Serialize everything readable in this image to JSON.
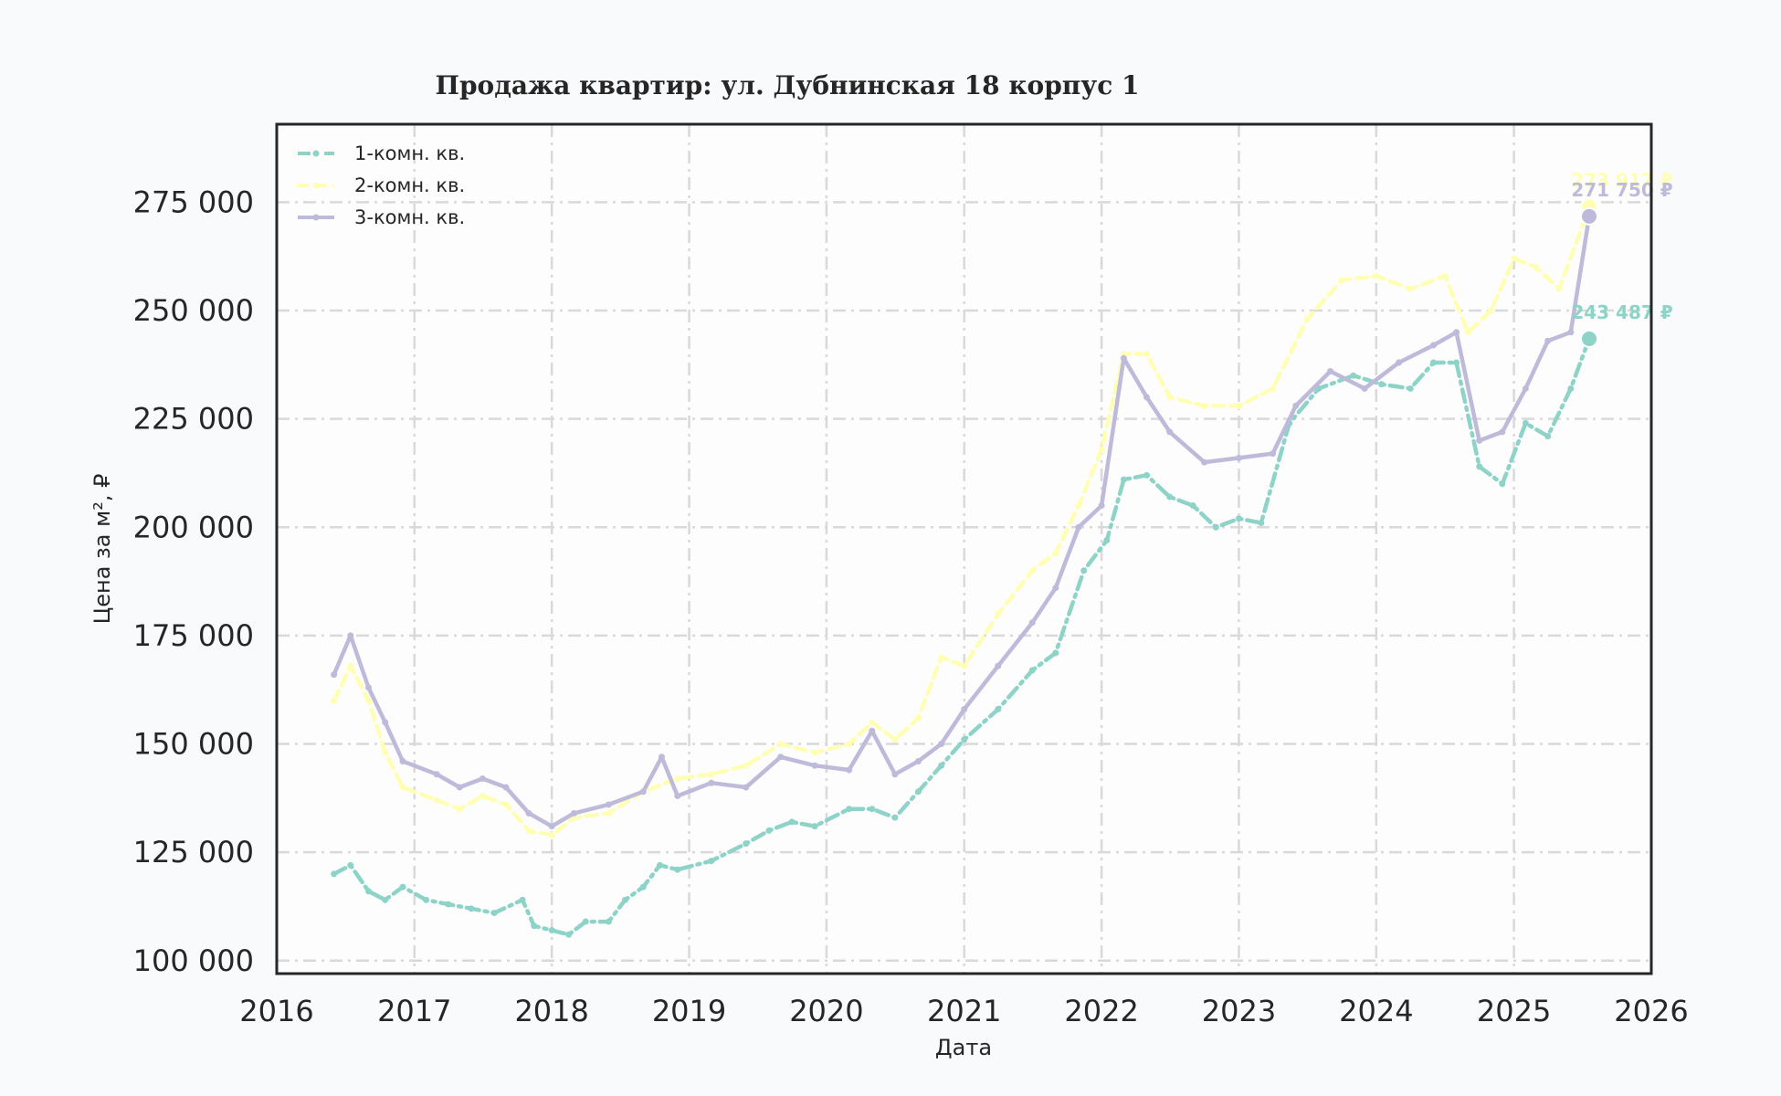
{
  "chart_data": {
    "type": "line",
    "title": "Продажа квартир: ул. Дубнинская 18 корпус 1",
    "xlabel": "Дата",
    "ylabel": "Цена за м², ₽",
    "xlim": [
      "2016-01-01",
      "2026-01-01"
    ],
    "ylim": [
      97000,
      293000
    ],
    "x_ticks": [
      "2016",
      "2017",
      "2018",
      "2019",
      "2020",
      "2021",
      "2022",
      "2023",
      "2024",
      "2025",
      "2026"
    ],
    "y_ticks": [
      100000,
      125000,
      150000,
      175000,
      200000,
      225000,
      250000,
      275000
    ],
    "y_tick_labels": [
      "100 000",
      "125 000",
      "150 000",
      "175 000",
      "200 000",
      "225 000",
      "250 000",
      "275 000"
    ],
    "grid": true,
    "legend_position": "top-left",
    "series": [
      {
        "name": "1-комн. кв.",
        "color": "#8dd3c7",
        "line_style": "dash-dot",
        "end_label": "243 487 ₽",
        "end_value": 243487,
        "points": [
          [
            "2016-06-01",
            120000
          ],
          [
            "2016-07-15",
            122000
          ],
          [
            "2016-09-01",
            116000
          ],
          [
            "2016-10-15",
            114000
          ],
          [
            "2016-12-01",
            117000
          ],
          [
            "2017-02-01",
            114000
          ],
          [
            "2017-04-01",
            113000
          ],
          [
            "2017-06-01",
            112000
          ],
          [
            "2017-08-01",
            111000
          ],
          [
            "2017-10-15",
            114000
          ],
          [
            "2017-11-15",
            108000
          ],
          [
            "2018-01-01",
            107000
          ],
          [
            "2018-02-15",
            106000
          ],
          [
            "2018-04-01",
            109000
          ],
          [
            "2018-06-01",
            109000
          ],
          [
            "2018-07-15",
            114000
          ],
          [
            "2018-09-01",
            117000
          ],
          [
            "2018-10-15",
            122000
          ],
          [
            "2018-12-01",
            121000
          ],
          [
            "2019-03-01",
            123000
          ],
          [
            "2019-06-01",
            127000
          ],
          [
            "2019-08-01",
            130000
          ],
          [
            "2019-10-01",
            132000
          ],
          [
            "2019-12-01",
            131000
          ],
          [
            "2020-03-01",
            135000
          ],
          [
            "2020-05-01",
            135000
          ],
          [
            "2020-07-01",
            133000
          ],
          [
            "2020-09-01",
            139000
          ],
          [
            "2020-11-01",
            145000
          ],
          [
            "2021-01-01",
            151000
          ],
          [
            "2021-04-01",
            158000
          ],
          [
            "2021-07-01",
            167000
          ],
          [
            "2021-09-01",
            171000
          ],
          [
            "2021-11-15",
            190000
          ],
          [
            "2022-01-15",
            197000
          ],
          [
            "2022-03-01",
            211000
          ],
          [
            "2022-05-01",
            212000
          ],
          [
            "2022-07-01",
            207000
          ],
          [
            "2022-09-01",
            205000
          ],
          [
            "2022-11-01",
            200000
          ],
          [
            "2023-01-01",
            202000
          ],
          [
            "2023-03-01",
            201000
          ],
          [
            "2023-05-15",
            224000
          ],
          [
            "2023-08-01",
            232000
          ],
          [
            "2023-11-01",
            235000
          ],
          [
            "2024-01-15",
            233000
          ],
          [
            "2024-04-01",
            232000
          ],
          [
            "2024-06-01",
            238000
          ],
          [
            "2024-08-01",
            238000
          ],
          [
            "2024-10-01",
            214000
          ],
          [
            "2024-12-01",
            210000
          ],
          [
            "2025-02-01",
            224000
          ],
          [
            "2025-04-01",
            221000
          ],
          [
            "2025-06-01",
            232000
          ],
          [
            "2025-07-20",
            243487
          ]
        ]
      },
      {
        "name": "2-комн. кв.",
        "color": "#ffffb3",
        "line_style": "dashed",
        "end_label": "273 917 ₽",
        "end_value": 273917,
        "points": [
          [
            "2016-06-01",
            160000
          ],
          [
            "2016-07-15",
            168000
          ],
          [
            "2016-09-01",
            160000
          ],
          [
            "2016-10-15",
            148000
          ],
          [
            "2016-12-01",
            140000
          ],
          [
            "2017-03-01",
            137000
          ],
          [
            "2017-05-01",
            135000
          ],
          [
            "2017-07-01",
            138000
          ],
          [
            "2017-09-01",
            136000
          ],
          [
            "2017-11-01",
            130000
          ],
          [
            "2018-01-01",
            129000
          ],
          [
            "2018-03-01",
            133000
          ],
          [
            "2018-06-01",
            134000
          ],
          [
            "2018-09-01",
            139000
          ],
          [
            "2018-12-01",
            142000
          ],
          [
            "2019-03-01",
            143000
          ],
          [
            "2019-06-01",
            145000
          ],
          [
            "2019-09-01",
            150000
          ],
          [
            "2019-12-01",
            148000
          ],
          [
            "2020-03-01",
            150000
          ],
          [
            "2020-05-01",
            155000
          ],
          [
            "2020-07-01",
            151000
          ],
          [
            "2020-09-01",
            156000
          ],
          [
            "2020-11-01",
            170000
          ],
          [
            "2021-01-01",
            168000
          ],
          [
            "2021-04-01",
            180000
          ],
          [
            "2021-07-01",
            190000
          ],
          [
            "2021-09-01",
            194000
          ],
          [
            "2021-11-01",
            205000
          ],
          [
            "2022-01-01",
            218000
          ],
          [
            "2022-03-01",
            240000
          ],
          [
            "2022-05-01",
            240000
          ],
          [
            "2022-07-01",
            230000
          ],
          [
            "2022-10-01",
            228000
          ],
          [
            "2023-01-01",
            228000
          ],
          [
            "2023-04-01",
            232000
          ],
          [
            "2023-07-01",
            248000
          ],
          [
            "2023-10-01",
            257000
          ],
          [
            "2024-01-01",
            258000
          ],
          [
            "2024-04-01",
            255000
          ],
          [
            "2024-07-01",
            258000
          ],
          [
            "2024-09-01",
            245000
          ],
          [
            "2024-11-01",
            250000
          ],
          [
            "2025-01-01",
            262000
          ],
          [
            "2025-03-01",
            260000
          ],
          [
            "2025-05-01",
            255000
          ],
          [
            "2025-07-20",
            273917
          ]
        ]
      },
      {
        "name": "3-комн. кв.",
        "color": "#bebada",
        "line_style": "solid",
        "end_label": "271 750 ₽",
        "end_value": 271750,
        "points": [
          [
            "2016-06-01",
            166000
          ],
          [
            "2016-07-15",
            175000
          ],
          [
            "2016-09-01",
            163000
          ],
          [
            "2016-10-15",
            155000
          ],
          [
            "2016-12-01",
            146000
          ],
          [
            "2017-03-01",
            143000
          ],
          [
            "2017-05-01",
            140000
          ],
          [
            "2017-07-01",
            142000
          ],
          [
            "2017-09-01",
            140000
          ],
          [
            "2017-11-01",
            134000
          ],
          [
            "2018-01-01",
            131000
          ],
          [
            "2018-03-01",
            134000
          ],
          [
            "2018-06-01",
            136000
          ],
          [
            "2018-09-01",
            139000
          ],
          [
            "2018-10-20",
            147000
          ],
          [
            "2018-12-01",
            138000
          ],
          [
            "2019-03-01",
            141000
          ],
          [
            "2019-06-01",
            140000
          ],
          [
            "2019-09-01",
            147000
          ],
          [
            "2019-12-01",
            145000
          ],
          [
            "2020-03-01",
            144000
          ],
          [
            "2020-05-01",
            153000
          ],
          [
            "2020-07-01",
            143000
          ],
          [
            "2020-09-01",
            146000
          ],
          [
            "2020-11-01",
            150000
          ],
          [
            "2021-01-01",
            158000
          ],
          [
            "2021-04-01",
            168000
          ],
          [
            "2021-07-01",
            178000
          ],
          [
            "2021-09-01",
            186000
          ],
          [
            "2021-11-01",
            200000
          ],
          [
            "2022-01-01",
            205000
          ],
          [
            "2022-03-01",
            239000
          ],
          [
            "2022-05-01",
            230000
          ],
          [
            "2022-07-01",
            222000
          ],
          [
            "2022-10-01",
            215000
          ],
          [
            "2023-01-01",
            216000
          ],
          [
            "2023-04-01",
            217000
          ],
          [
            "2023-06-01",
            228000
          ],
          [
            "2023-09-01",
            236000
          ],
          [
            "2023-12-01",
            232000
          ],
          [
            "2024-03-01",
            238000
          ],
          [
            "2024-06-01",
            242000
          ],
          [
            "2024-08-01",
            245000
          ],
          [
            "2024-10-01",
            220000
          ],
          [
            "2024-12-01",
            222000
          ],
          [
            "2025-02-01",
            232000
          ],
          [
            "2025-04-01",
            243000
          ],
          [
            "2025-06-01",
            245000
          ],
          [
            "2025-07-20",
            271750
          ]
        ]
      }
    ]
  }
}
